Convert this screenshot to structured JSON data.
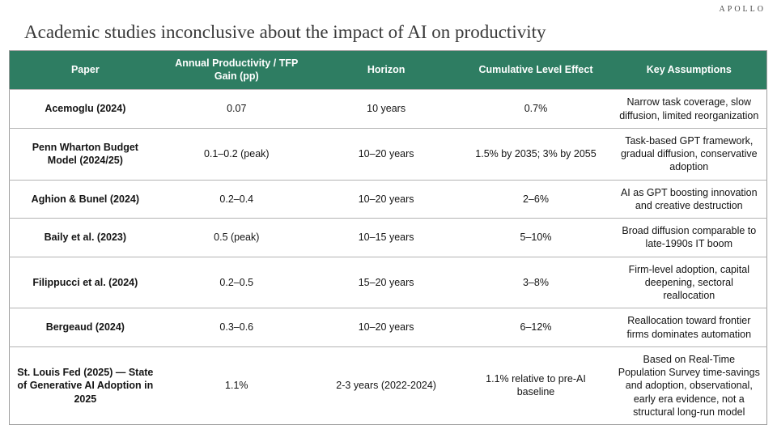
{
  "brand": "APOLLO",
  "title": "Academic studies inconclusive about the impact of AI on productivity",
  "theme": {
    "header_bg": "#2e7d62",
    "header_text": "#ffffff",
    "row_border": "#b3b3b3",
    "title_color": "#3a3a3a"
  },
  "chart_data": {
    "type": "table",
    "title": "Academic studies inconclusive about the impact of AI on productivity",
    "columns": [
      "Paper",
      "Annual Productivity / TFP Gain (pp)",
      "Horizon",
      "Cumulative Level Effect",
      "Key Assumptions"
    ],
    "rows": [
      {
        "paper": "Acemoglu (2024)",
        "gain": "0.07",
        "horizon": "10 years",
        "effect": "0.7%",
        "assumptions": "Narrow task coverage, slow diffusion, limited reorganization"
      },
      {
        "paper": "Penn Wharton Budget Model (2024/25)",
        "gain": "0.1–0.2 (peak)",
        "horizon": "10–20 years",
        "effect": "1.5% by 2035; 3% by 2055",
        "assumptions": "Task-based GPT framework, gradual diffusion, conservative adoption"
      },
      {
        "paper": "Aghion & Bunel (2024)",
        "gain": "0.2–0.4",
        "horizon": "10–20 years",
        "effect": "2–6%",
        "assumptions": "AI as GPT boosting innovation and creative destruction"
      },
      {
        "paper": "Baily et al. (2023)",
        "gain": "0.5 (peak)",
        "horizon": "10–15 years",
        "effect": "5–10%",
        "assumptions": "Broad diffusion comparable to late-1990s IT boom"
      },
      {
        "paper": "Filippucci et al. (2024)",
        "gain": "0.2–0.5",
        "horizon": "15–20 years",
        "effect": "3–8%",
        "assumptions": "Firm-level adoption, capital deepening, sectoral reallocation"
      },
      {
        "paper": "Bergeaud (2024)",
        "gain": "0.3–0.6",
        "horizon": "10–20 years",
        "effect": "6–12%",
        "assumptions": "Reallocation toward frontier firms dominates automation"
      },
      {
        "paper": "St. Louis Fed (2025) — State of Generative AI Adoption in 2025",
        "gain": "1.1%",
        "horizon": "2-3 years (2022-2024)",
        "effect": "1.1% relative to pre-AI baseline",
        "assumptions": "Based on Real-Time Population Survey time-savings and adoption, observational, early era evidence, not a structural long-run model"
      }
    ]
  }
}
